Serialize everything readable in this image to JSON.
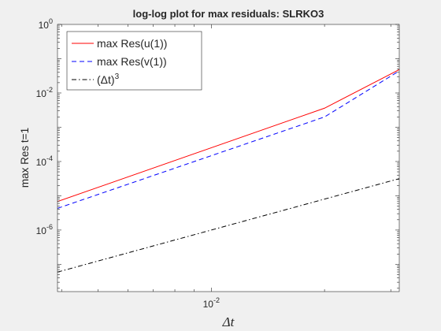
{
  "chart_data": {
    "type": "line",
    "title": "log-log plot for max residuals: SLRKO3",
    "xlabel": "Δt",
    "ylabel": "max Res t=1",
    "xscale": "log",
    "yscale": "log",
    "xlim": [
      0.0039,
      0.0316
    ],
    "ylim": [
      1.6e-08,
      1
    ],
    "grid": false,
    "legend_position": "top-left",
    "x_tick_labels": [
      {
        "value": 0.01,
        "base": "10",
        "exp": "-2"
      }
    ],
    "y_tick_labels": [
      {
        "value": 1,
        "base": "10",
        "exp": "0"
      },
      {
        "value": 0.01,
        "base": "10",
        "exp": "-2"
      },
      {
        "value": 0.0001,
        "base": "10",
        "exp": "-4"
      },
      {
        "value": 1e-06,
        "base": "10",
        "exp": "-6"
      }
    ],
    "series": [
      {
        "name": "max Res(u(1))",
        "color": "#ff0000",
        "style": "solid",
        "x": [
          0.0039,
          0.02,
          0.0316
        ],
        "y": [
          6.8e-06,
          0.0036,
          0.048
        ]
      },
      {
        "name": "max Res(v(1))",
        "color": "#0000ff",
        "style": "dashed",
        "x": [
          0.0039,
          0.02,
          0.0316
        ],
        "y": [
          4.3e-06,
          0.002,
          0.044
        ]
      },
      {
        "name": "(Δt)",
        "name_superscript": "3",
        "color": "#000000",
        "style": "dashdot",
        "x": [
          0.0039,
          0.0316
        ],
        "y": [
          5.93e-08,
          3.16e-05
        ]
      }
    ]
  }
}
